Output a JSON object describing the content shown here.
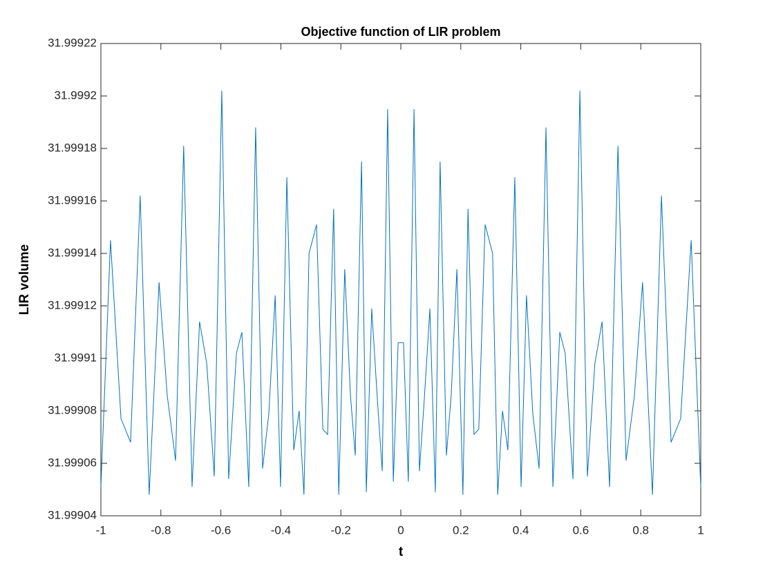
{
  "chart_data": {
    "type": "line",
    "title": "Objective function of LIR problem",
    "xlabel": "t",
    "ylabel": "LIR volume",
    "x": [
      -1,
      -0.968,
      -0.933,
      -0.901,
      -0.869,
      -0.839,
      -0.806,
      -0.779,
      -0.751,
      -0.724,
      -0.696,
      -0.671,
      -0.647,
      -0.622,
      -0.597,
      -0.574,
      -0.548,
      -0.53,
      -0.507,
      -0.484,
      -0.461,
      -0.44,
      -0.419,
      -0.401,
      -0.38,
      -0.357,
      -0.339,
      -0.323,
      -0.306,
      -0.281,
      -0.26,
      -0.244,
      -0.224,
      -0.207,
      -0.187,
      -0.168,
      -0.152,
      -0.131,
      -0.115,
      -0.097,
      -0.078,
      -0.062,
      -0.044,
      -0.025,
      -0.009,
      0.009,
      0.025,
      0.044,
      0.062,
      0.078,
      0.097,
      0.115,
      0.131,
      0.152,
      0.168,
      0.187,
      0.207,
      0.224,
      0.244,
      0.26,
      0.281,
      0.306,
      0.323,
      0.339,
      0.357,
      0.38,
      0.401,
      0.419,
      0.44,
      0.461,
      0.484,
      0.507,
      0.53,
      0.548,
      0.574,
      0.597,
      0.622,
      0.647,
      0.671,
      0.696,
      0.724,
      0.751,
      0.779,
      0.806,
      0.839,
      0.869,
      0.901,
      0.933,
      0.968,
      1
    ],
    "series": [
      {
        "name": "LIR volume",
        "color": "#0072bd",
        "values": [
          31.999051,
          31.999145,
          31.999077,
          31.999068,
          31.999162,
          31.999048,
          31.999129,
          31.999086,
          31.999061,
          31.999181,
          31.999051,
          31.999114,
          31.999098,
          31.999055,
          31.999202,
          31.999054,
          31.999102,
          31.99911,
          31.999051,
          31.999188,
          31.999058,
          31.999079,
          31.999124,
          31.999051,
          31.999169,
          31.999065,
          31.99908,
          31.999048,
          31.99914,
          31.999151,
          31.999073,
          31.999071,
          31.999157,
          31.999048,
          31.999134,
          31.999086,
          31.999063,
          31.999175,
          31.999049,
          31.999119,
          31.999084,
          31.999057,
          31.999195,
          31.999053,
          31.999106,
          31.999106,
          31.999053,
          31.999195,
          31.999057,
          31.999084,
          31.999119,
          31.999049,
          31.999175,
          31.999063,
          31.999086,
          31.999134,
          31.999048,
          31.999157,
          31.999071,
          31.999073,
          31.999151,
          31.99914,
          31.999048,
          31.99908,
          31.999065,
          31.999169,
          31.999051,
          31.999124,
          31.999079,
          31.999058,
          31.999188,
          31.999051,
          31.99911,
          31.999102,
          31.999054,
          31.999202,
          31.999055,
          31.999098,
          31.999114,
          31.999051,
          31.999181,
          31.999061,
          31.999086,
          31.999129,
          31.999048,
          31.999162,
          31.999068,
          31.999077,
          31.999145,
          31.999051
        ]
      }
    ],
    "xlim": [
      -1,
      1
    ],
    "xticks": [
      -1,
      -0.8,
      -0.6,
      -0.4,
      -0.2,
      0,
      0.2,
      0.4,
      0.6,
      0.8,
      1
    ],
    "ylim": [
      31.99904,
      31.99922
    ],
    "yticks": [
      31.99904,
      31.99906,
      31.99908,
      31.9991,
      31.99912,
      31.99914,
      31.99916,
      31.99918,
      31.9992,
      31.99922
    ],
    "grid": false
  }
}
